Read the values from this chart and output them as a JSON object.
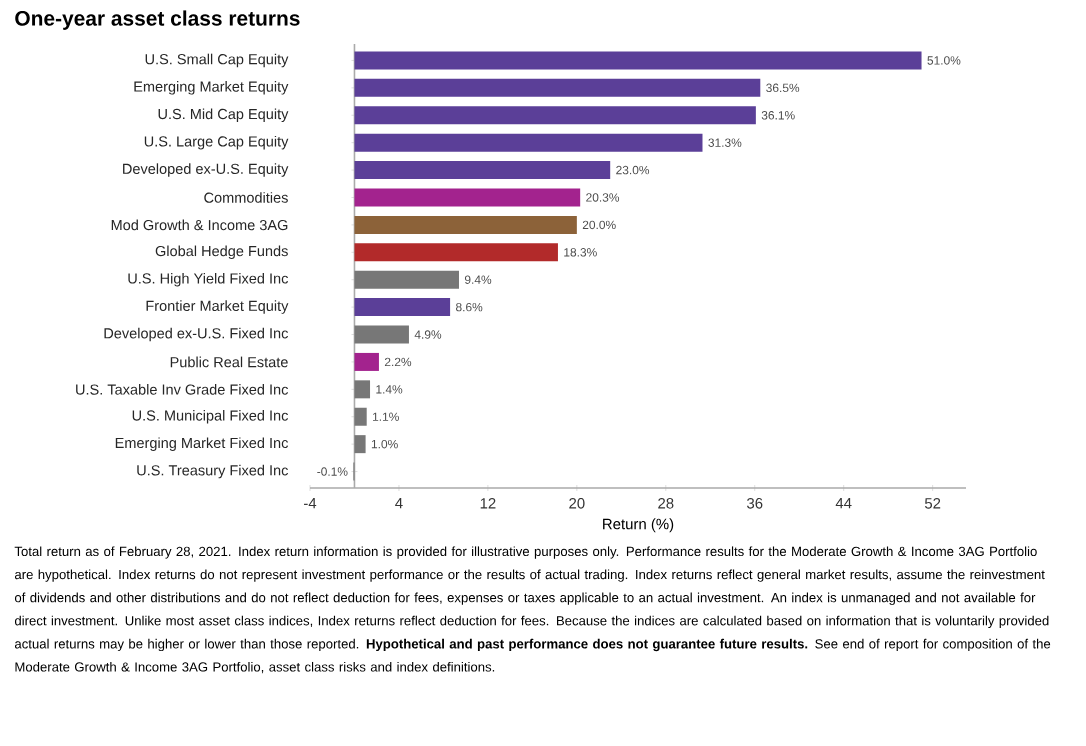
{
  "chart_data": {
    "type": "bar",
    "orientation": "horizontal",
    "title": "One-year asset class returns",
    "xlabel": "Return (%)",
    "categories": [
      "U.S. Small Cap Equity",
      "Emerging Market Equity",
      "U.S. Mid Cap Equity",
      "U.S. Large Cap Equity",
      "Developed ex-U.S. Equity",
      "Commodities",
      "Mod Growth & Income 3AG",
      "Global Hedge Funds",
      "U.S. High Yield Fixed Inc",
      "Frontier Market Equity",
      "Developed ex-U.S. Fixed Inc",
      "Public Real Estate",
      "U.S. Taxable Inv Grade Fixed Inc",
      "U.S. Municipal Fixed Inc",
      "Emerging Market Fixed Inc",
      "U.S. Treasury Fixed Inc"
    ],
    "values": [
      51.0,
      36.5,
      36.1,
      31.3,
      23.0,
      20.3,
      20.0,
      18.3,
      9.4,
      8.6,
      4.9,
      2.2,
      1.4,
      1.1,
      1.0,
      -0.1
    ],
    "colors": [
      "#5b3f98",
      "#5b3f98",
      "#5b3f98",
      "#5b3f98",
      "#5b3f98",
      "#a3238e",
      "#8c6239",
      "#b22a2a",
      "#777777",
      "#5b3f98",
      "#777777",
      "#a3238e",
      "#777777",
      "#777777",
      "#777777",
      "#777777"
    ],
    "value_labels": [
      "51.0%",
      "36.5%",
      "36.1%",
      "31.3%",
      "23.0%",
      "20.3%",
      "20.0%",
      "18.3%",
      "9.4%",
      "8.6%",
      "4.9%",
      "2.2%",
      "1.4%",
      "1.1%",
      "1.0%",
      "-0.1%"
    ],
    "xlim": [
      -4,
      55
    ],
    "xticks": [
      -4,
      4,
      12,
      20,
      28,
      36,
      44,
      52
    ],
    "annotations": [
      "Total return as of February 28, 2021. Index return information is provided for illustrative purposes only. Performance results for the Moderate Growth & Income 3AG Portfolio are hypothetical. Index returns do not represent investment performance or the results of actual trading. Index returns reflect general market results, assume the reinvestment of dividends and other distributions and do not reflect deduction for fees, expenses or taxes applicable to an actual investment. An index is unmanaged and not available for direct investment. Unlike most asset class indices, Index returns reflect deduction for fees. Because the indices are calculated based on information that is voluntarily provided actual returns may be higher or lower than those reported. **Hypothetical and past performance does not guarantee future results.** See end of report for composition of the Moderate Growth & Income 3AG Portfolio, asset class risks and index definitions."
    ]
  }
}
